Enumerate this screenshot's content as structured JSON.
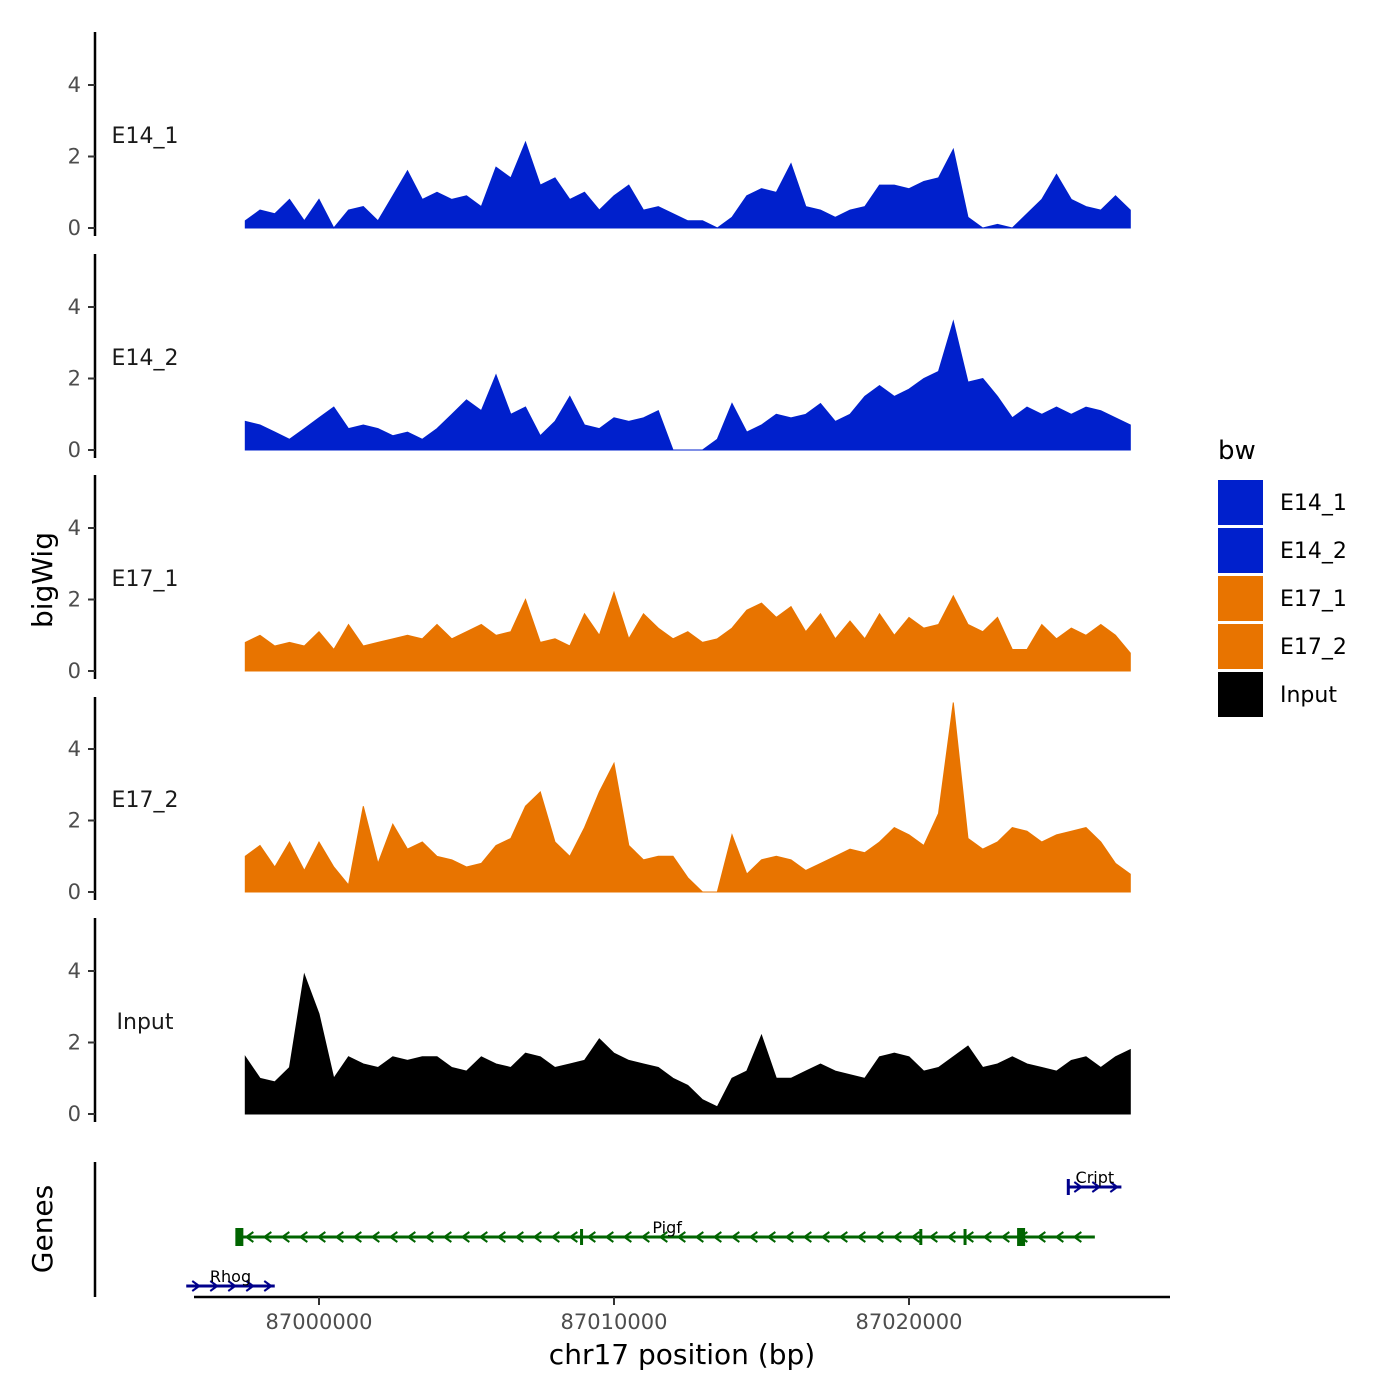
{
  "chart_data": {
    "type": "area",
    "xlabel": "chr17 position (bp)",
    "ylabel": "bigWig",
    "genes_label": "Genes",
    "xlim": [
      86996000,
      87029000
    ],
    "ylim": [
      0,
      5.5
    ],
    "x_ticks": [
      87000000,
      87010000,
      87020000
    ],
    "x_tick_labels": [
      "87000000",
      "87010000",
      "87020000"
    ],
    "y_ticks": [
      0,
      2,
      4
    ],
    "y_tick_labels": [
      "0",
      "2",
      "4"
    ],
    "legend": {
      "title": "bw",
      "entries": [
        {
          "label": "E14_1",
          "color": "#0020CC"
        },
        {
          "label": "E14_2",
          "color": "#0020CC"
        },
        {
          "label": "E17_1",
          "color": "#E87400"
        },
        {
          "label": "E17_2",
          "color": "#E87400"
        },
        {
          "label": "Input",
          "color": "#000000"
        }
      ]
    },
    "x": [
      86997500,
      86998000,
      86998500,
      86999000,
      86999500,
      87000000,
      87000500,
      87001000,
      87001500,
      87002000,
      87002500,
      87003000,
      87003500,
      87004000,
      87004500,
      87005000,
      87005500,
      87006000,
      87006500,
      87007000,
      87007500,
      87008000,
      87008500,
      87009000,
      87009500,
      87010000,
      87010500,
      87011000,
      87011500,
      87012000,
      87012500,
      87013000,
      87013500,
      87014000,
      87014500,
      87015000,
      87015500,
      87016000,
      87016500,
      87017000,
      87017500,
      87018000,
      87018500,
      87019000,
      87019500,
      87020000,
      87020500,
      87021000,
      87021500,
      87022000,
      87022500,
      87023000,
      87023500,
      87024000,
      87024500,
      87025000,
      87025500,
      87026000,
      87026500,
      87027000,
      87027500
    ],
    "series": [
      {
        "name": "E14_1",
        "color": "#0020CC",
        "values": [
          0.2,
          0.5,
          0.4,
          0.8,
          0.2,
          0.8,
          0,
          0.5,
          0.6,
          0.2,
          0.9,
          1.6,
          0.8,
          1.0,
          0.8,
          0.9,
          0.6,
          1.7,
          1.4,
          2.4,
          1.2,
          1.4,
          0.8,
          1.0,
          0.5,
          0.9,
          1.2,
          0.5,
          0.6,
          0.4,
          0.2,
          0.2,
          0,
          0.3,
          0.9,
          1.1,
          1.0,
          1.8,
          0.6,
          0.5,
          0.3,
          0.5,
          0.6,
          1.2,
          1.2,
          1.1,
          1.3,
          1.4,
          2.2,
          0.3,
          0,
          0.1,
          0,
          0.4,
          0.8,
          1.5,
          0.8,
          0.6,
          0.5,
          0.9,
          0.5
        ]
      },
      {
        "name": "E14_2",
        "color": "#0020CC",
        "values": [
          0.8,
          0.7,
          0.5,
          0.3,
          0.6,
          0.9,
          1.2,
          0.6,
          0.7,
          0.6,
          0.4,
          0.5,
          0.3,
          0.6,
          1.0,
          1.4,
          1.1,
          2.1,
          1.0,
          1.2,
          0.4,
          0.8,
          1.5,
          0.7,
          0.6,
          0.9,
          0.8,
          0.9,
          1.1,
          0,
          0,
          0,
          0.3,
          1.3,
          0.5,
          0.7,
          1.0,
          0.9,
          1.0,
          1.3,
          0.8,
          1.0,
          1.5,
          1.8,
          1.5,
          1.7,
          2.0,
          2.2,
          3.6,
          1.9,
          2.0,
          1.5,
          0.9,
          1.2,
          1.0,
          1.2,
          1.0,
          1.2,
          1.1,
          0.9,
          0.7
        ]
      },
      {
        "name": "E17_1",
        "color": "#E87400",
        "values": [
          0.8,
          1.0,
          0.7,
          0.8,
          0.7,
          1.1,
          0.6,
          1.3,
          0.7,
          0.8,
          0.9,
          1.0,
          0.9,
          1.3,
          0.9,
          1.1,
          1.3,
          1.0,
          1.1,
          2.0,
          0.8,
          0.9,
          0.7,
          1.6,
          1.0,
          2.2,
          0.9,
          1.6,
          1.2,
          0.9,
          1.1,
          0.8,
          0.9,
          1.2,
          1.7,
          1.9,
          1.5,
          1.8,
          1.1,
          1.6,
          0.9,
          1.4,
          0.9,
          1.6,
          1.0,
          1.5,
          1.2,
          1.3,
          2.1,
          1.3,
          1.1,
          1.5,
          0.6,
          0.6,
          1.3,
          0.9,
          1.2,
          1.0,
          1.3,
          1.0,
          0.5
        ]
      },
      {
        "name": "E17_2",
        "color": "#E87400",
        "values": [
          1.0,
          1.3,
          0.7,
          1.4,
          0.6,
          1.4,
          0.7,
          0.2,
          2.4,
          0.8,
          1.9,
          1.2,
          1.4,
          1.0,
          0.9,
          0.7,
          0.8,
          1.3,
          1.5,
          2.4,
          2.8,
          1.4,
          1.0,
          1.8,
          2.8,
          3.6,
          1.3,
          0.9,
          1.0,
          1.0,
          0.4,
          0,
          0,
          1.6,
          0.5,
          0.9,
          1.0,
          0.9,
          0.6,
          0.8,
          1.0,
          1.2,
          1.1,
          1.4,
          1.8,
          1.6,
          1.3,
          2.2,
          5.3,
          1.5,
          1.2,
          1.4,
          1.8,
          1.7,
          1.4,
          1.6,
          1.7,
          1.8,
          1.4,
          0.8,
          0.5
        ]
      },
      {
        "name": "Input",
        "color": "#000000",
        "values": [
          1.6,
          1.0,
          0.9,
          1.3,
          3.9,
          2.8,
          1.0,
          1.6,
          1.4,
          1.3,
          1.6,
          1.5,
          1.6,
          1.6,
          1.3,
          1.2,
          1.6,
          1.4,
          1.3,
          1.7,
          1.6,
          1.3,
          1.4,
          1.5,
          2.1,
          1.7,
          1.5,
          1.4,
          1.3,
          1.0,
          0.8,
          0.4,
          0.2,
          1.0,
          1.2,
          2.2,
          1.0,
          1.0,
          1.2,
          1.4,
          1.2,
          1.1,
          1.0,
          1.6,
          1.7,
          1.6,
          1.2,
          1.3,
          1.6,
          1.9,
          1.3,
          1.4,
          1.6,
          1.4,
          1.3,
          1.2,
          1.5,
          1.6,
          1.3,
          1.6,
          1.8
        ]
      }
    ],
    "genes": [
      {
        "name": "Rhog",
        "start": 86995500,
        "end": 86998500,
        "strand": "+",
        "color": "#00008B",
        "row": 3,
        "exons": []
      },
      {
        "name": "Pigf",
        "start": 86997300,
        "end": 87026300,
        "strand": "-",
        "color": "#006400",
        "row": 2,
        "exons": [
          86997300,
          87008900,
          87020400,
          87021900,
          87023800
        ]
      },
      {
        "name": "Cript",
        "start": 87025400,
        "end": 87027200,
        "strand": "+",
        "color": "#00008B",
        "row": 1,
        "exons": [
          87025400
        ]
      }
    ]
  }
}
